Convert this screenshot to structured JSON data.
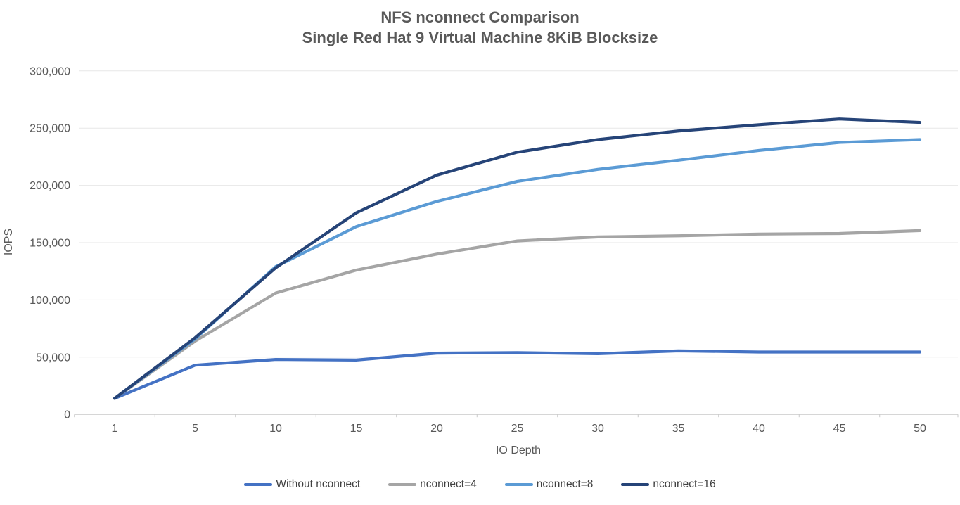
{
  "chart": {
    "title_line1": "NFS nconnect Comparison",
    "title_line2": "Single Red Hat 9 Virtual Machine 8KiB Blocksize"
  },
  "chart_data": {
    "type": "line",
    "title": "NFS nconnect Comparison — Single Red Hat 9 Virtual Machine 8KiB Blocksize",
    "xlabel": "IO Depth",
    "ylabel": "IOPS",
    "x": [
      1,
      5,
      10,
      15,
      20,
      25,
      30,
      35,
      40,
      45,
      50
    ],
    "x_axis_type": "category",
    "y_ticks": [
      0,
      50000,
      100000,
      150000,
      200000,
      250000,
      300000
    ],
    "ylim": [
      0,
      300000
    ],
    "grid": "horizontal",
    "legend_position": "bottom",
    "series": [
      {
        "name": "Without nconnect",
        "color": "#4472C4",
        "values": [
          14000,
          43000,
          48000,
          47500,
          53500,
          54000,
          53000,
          55500,
          54500,
          54500,
          54500
        ]
      },
      {
        "name": "nconnect=4",
        "color": "#A5A5A5",
        "values": [
          14000,
          64000,
          106000,
          126000,
          140000,
          151500,
          155000,
          156000,
          157500,
          158000,
          160500
        ]
      },
      {
        "name": "nconnect=8",
        "color": "#5B9BD5",
        "values": [
          14000,
          66000,
          129000,
          164000,
          186000,
          203500,
          214000,
          222000,
          230500,
          237500,
          240000
        ]
      },
      {
        "name": "nconnect=16",
        "color": "#264478",
        "values": [
          14000,
          67000,
          128000,
          176000,
          209000,
          229000,
          240000,
          247500,
          253000,
          258000,
          255000
        ]
      }
    ],
    "style_colors": {
      "gridline": "#E7E7E7",
      "axis_line": "#C9C9C9",
      "axis_text": "#595959",
      "legend_text": "#404040",
      "background": "#FFFFFF"
    }
  }
}
